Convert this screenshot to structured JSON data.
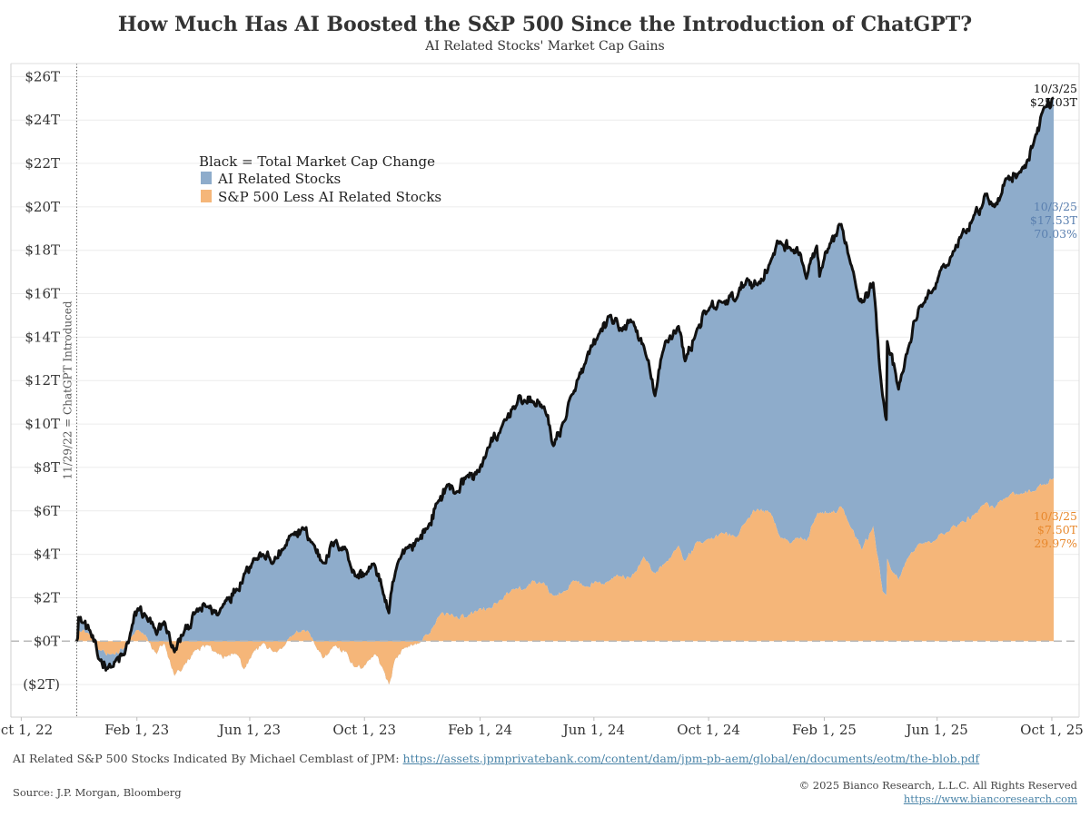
{
  "header": {
    "title": "How Much Has AI Boosted the S&P 500 Since the Introduction of ChatGPT?",
    "subtitle": "AI Related Stocks' Market Cap Gains"
  },
  "footer": {
    "note_prefix": "AI Related S&P 500 Stocks Indicated By Michael Cemblast of JPM: ",
    "note_link": "https://assets.jpmprivatebank.com/content/dam/jpm-pb-aem/global/en/documents/eotm/the-blob.pdf",
    "source": "Source: J.P. Morgan, Bloomberg",
    "copyright": "© 2025 Bianco Research, L.L.C. All Rights Reserved",
    "website": "https://www.biancoresearch.com"
  },
  "chart_data": {
    "type": "area",
    "x_start": "2022-11-29",
    "x_end": "2025-10-03",
    "xlim": [
      "2022-09-20",
      "2025-10-30"
    ],
    "ylim": [
      -3.5,
      26.6
    ],
    "yticks": [
      -2,
      0,
      2,
      4,
      6,
      8,
      10,
      12,
      14,
      16,
      18,
      20,
      22,
      24,
      26
    ],
    "ytick_labels": [
      "($2T)",
      "$0T",
      "$2T",
      "$4T",
      "$6T",
      "$8T",
      "$10T",
      "$12T",
      "$14T",
      "$16T",
      "$18T",
      "$20T",
      "$22T",
      "$24T",
      "$26T"
    ],
    "xticks": [
      "2022-10-01",
      "2023-02-01",
      "2023-06-01",
      "2023-10-01",
      "2024-02-01",
      "2024-06-01",
      "2024-10-01",
      "2025-02-01",
      "2025-06-01",
      "2025-10-01"
    ],
    "xtick_labels": [
      "Oct 1, 22",
      "Feb 1, 23",
      "Jun 1, 23",
      "Oct 1, 23",
      "Feb 1, 24",
      "Jun 1, 24",
      "Oct 1, 24",
      "Feb 1, 25",
      "Jun 1, 25",
      "Oct 1, 25"
    ],
    "grid": true,
    "legend": {
      "placement": "upper-left",
      "header": "Black = Total Market Cap Change",
      "entries": [
        "AI Related Stocks",
        "S&P 500 Less AI Related Stocks"
      ]
    },
    "vline": {
      "date": "2022-11-29",
      "label": "11/29/22 = ChatGPT Introduced"
    },
    "colors": {
      "ai": "#8eaccb",
      "non_ai": "#f5b679",
      "total": "#111111",
      "ai_label": "#5b80b0",
      "non_ai_label": "#e8882c"
    },
    "series": [
      {
        "name": "Total",
        "key": "total",
        "points": [
          [
            "2022-11-29",
            0
          ],
          [
            "2022-12-01",
            1.1
          ],
          [
            "2022-12-13",
            0.5
          ],
          [
            "2022-12-22",
            -0.8
          ],
          [
            "2023-01-05",
            -1.2
          ],
          [
            "2023-01-19",
            -0.6
          ],
          [
            "2023-01-26",
            0.5
          ],
          [
            "2023-02-02",
            1.5
          ],
          [
            "2023-02-10",
            1.2
          ],
          [
            "2023-02-22",
            0.3
          ],
          [
            "2023-03-02",
            0.9
          ],
          [
            "2023-03-13",
            -0.5
          ],
          [
            "2023-03-23",
            0.4
          ],
          [
            "2023-04-04",
            1.3
          ],
          [
            "2023-04-18",
            1.6
          ],
          [
            "2023-04-28",
            1.2
          ],
          [
            "2023-05-08",
            2
          ],
          [
            "2023-05-18",
            2.4
          ],
          [
            "2023-05-26",
            3.1
          ],
          [
            "2023-06-05",
            3.8
          ],
          [
            "2023-06-15",
            4
          ],
          [
            "2023-06-26",
            3.6
          ],
          [
            "2023-07-06",
            4.2
          ],
          [
            "2023-07-18",
            4.9
          ],
          [
            "2023-07-28",
            5.2
          ],
          [
            "2023-08-07",
            4.5
          ],
          [
            "2023-08-18",
            3.6
          ],
          [
            "2023-08-31",
            4.6
          ],
          [
            "2023-09-12",
            4.2
          ],
          [
            "2023-09-21",
            3
          ],
          [
            "2023-10-02",
            3.1
          ],
          [
            "2023-10-12",
            3.5
          ],
          [
            "2023-10-20",
            2.4
          ],
          [
            "2023-10-27",
            1.3
          ],
          [
            "2023-11-03",
            3.2
          ],
          [
            "2023-11-14",
            4.3
          ],
          [
            "2023-11-28",
            4.7
          ],
          [
            "2023-12-08",
            5.3
          ],
          [
            "2023-12-18",
            6.4
          ],
          [
            "2023-12-28",
            7.2
          ],
          [
            "2024-01-05",
            6.8
          ],
          [
            "2024-01-18",
            7.6
          ],
          [
            "2024-01-31",
            7.8
          ],
          [
            "2024-02-09",
            8.9
          ],
          [
            "2024-02-22",
            9.6
          ],
          [
            "2024-03-07",
            10.8
          ],
          [
            "2024-03-19",
            11.1
          ],
          [
            "2024-03-28",
            11
          ],
          [
            "2024-04-09",
            10.8
          ],
          [
            "2024-04-19",
            9
          ],
          [
            "2024-04-30",
            10.1
          ],
          [
            "2024-05-10",
            11.4
          ],
          [
            "2024-05-23",
            12.8
          ],
          [
            "2024-06-05",
            14
          ],
          [
            "2024-06-18",
            15
          ],
          [
            "2024-06-28",
            14.3
          ],
          [
            "2024-07-10",
            14.8
          ],
          [
            "2024-07-24",
            13.6
          ],
          [
            "2024-08-05",
            11.3
          ],
          [
            "2024-08-16",
            13.8
          ],
          [
            "2024-08-30",
            14.5
          ],
          [
            "2024-09-06",
            12.9
          ],
          [
            "2024-09-19",
            14.4
          ],
          [
            "2024-09-30",
            15.2
          ],
          [
            "2024-10-15",
            15.6
          ],
          [
            "2024-10-31",
            15.8
          ],
          [
            "2024-11-11",
            16.7
          ],
          [
            "2024-11-22",
            16.4
          ],
          [
            "2024-12-06",
            17.5
          ],
          [
            "2024-12-16",
            18.4
          ],
          [
            "2024-12-27",
            18.1
          ],
          [
            "2025-01-07",
            17.8
          ],
          [
            "2025-01-13",
            16.7
          ],
          [
            "2025-01-24",
            18.2
          ],
          [
            "2025-01-27",
            16.8
          ],
          [
            "2025-02-06",
            18.1
          ],
          [
            "2025-02-19",
            19.2
          ],
          [
            "2025-03-04",
            17
          ],
          [
            "2025-03-13",
            15.6
          ],
          [
            "2025-03-25",
            16.5
          ],
          [
            "2025-04-04",
            11.3
          ],
          [
            "2025-04-08",
            10.2
          ],
          [
            "2025-04-09",
            13.8
          ],
          [
            "2025-04-21",
            11.6
          ],
          [
            "2025-05-02",
            13.6
          ],
          [
            "2025-05-13",
            15.4
          ],
          [
            "2025-05-28",
            16.2
          ],
          [
            "2025-06-11",
            17.3
          ],
          [
            "2025-06-27",
            18.7
          ],
          [
            "2025-07-10",
            19.6
          ],
          [
            "2025-07-24",
            20.6
          ],
          [
            "2025-08-01",
            20
          ],
          [
            "2025-08-13",
            21.3
          ],
          [
            "2025-08-29",
            21.6
          ],
          [
            "2025-09-12",
            23
          ],
          [
            "2025-09-22",
            24.5
          ],
          [
            "2025-10-03",
            25.03
          ]
        ]
      },
      {
        "name": "S&P 500 Less AI Related Stocks",
        "key": "non_ai",
        "points": [
          [
            "2022-11-29",
            0
          ],
          [
            "2022-12-01",
            0.5
          ],
          [
            "2022-12-13",
            0.3
          ],
          [
            "2022-12-22",
            -0.4
          ],
          [
            "2023-01-05",
            -0.6
          ],
          [
            "2023-01-19",
            -0.3
          ],
          [
            "2023-01-26",
            0.2
          ],
          [
            "2023-02-02",
            0.5
          ],
          [
            "2023-02-10",
            0.3
          ],
          [
            "2023-02-22",
            -0.6
          ],
          [
            "2023-03-02",
            -0.1
          ],
          [
            "2023-03-13",
            -1.6
          ],
          [
            "2023-03-23",
            -1.1
          ],
          [
            "2023-04-04",
            -0.4
          ],
          [
            "2023-04-18",
            -0.2
          ],
          [
            "2023-04-28",
            -0.6
          ],
          [
            "2023-05-08",
            -0.7
          ],
          [
            "2023-05-18",
            -0.6
          ],
          [
            "2023-05-26",
            -1.3
          ],
          [
            "2023-06-05",
            -0.5
          ],
          [
            "2023-06-15",
            -0.1
          ],
          [
            "2023-06-26",
            -0.5
          ],
          [
            "2023-07-06",
            -0.3
          ],
          [
            "2023-07-18",
            0.3
          ],
          [
            "2023-07-28",
            0.5
          ],
          [
            "2023-08-07",
            0.1
          ],
          [
            "2023-08-18",
            -0.8
          ],
          [
            "2023-08-31",
            -0.2
          ],
          [
            "2023-09-12",
            -0.5
          ],
          [
            "2023-09-21",
            -1.2
          ],
          [
            "2023-10-02",
            -1.1
          ],
          [
            "2023-10-12",
            -0.6
          ],
          [
            "2023-10-20",
            -1.2
          ],
          [
            "2023-10-27",
            -2
          ],
          [
            "2023-11-03",
            -0.8
          ],
          [
            "2023-11-14",
            -0.3
          ],
          [
            "2023-11-28",
            -0.1
          ],
          [
            "2023-12-08",
            0.3
          ],
          [
            "2023-12-18",
            1.1
          ],
          [
            "2023-12-28",
            1.3
          ],
          [
            "2024-01-05",
            1.1
          ],
          [
            "2024-01-18",
            1.1
          ],
          [
            "2024-01-31",
            1.5
          ],
          [
            "2024-02-09",
            1.5
          ],
          [
            "2024-02-22",
            1.9
          ],
          [
            "2024-03-07",
            2.4
          ],
          [
            "2024-03-19",
            2.4
          ],
          [
            "2024-03-28",
            2.8
          ],
          [
            "2024-04-09",
            2.7
          ],
          [
            "2024-04-19",
            2.1
          ],
          [
            "2024-04-30",
            2.3
          ],
          [
            "2024-05-10",
            2.8
          ],
          [
            "2024-05-23",
            2.5
          ],
          [
            "2024-06-05",
            2.7
          ],
          [
            "2024-06-18",
            2.8
          ],
          [
            "2024-06-28",
            3
          ],
          [
            "2024-07-10",
            2.9
          ],
          [
            "2024-07-24",
            3.9
          ],
          [
            "2024-08-05",
            3.1
          ],
          [
            "2024-08-16",
            3.6
          ],
          [
            "2024-08-30",
            4.4
          ],
          [
            "2024-09-06",
            3.7
          ],
          [
            "2024-09-19",
            4.6
          ],
          [
            "2024-09-30",
            4.7
          ],
          [
            "2024-10-15",
            5
          ],
          [
            "2024-10-31",
            4.8
          ],
          [
            "2024-11-11",
            5.6
          ],
          [
            "2024-11-22",
            6.1
          ],
          [
            "2024-12-06",
            5.9
          ],
          [
            "2024-12-16",
            4.8
          ],
          [
            "2024-12-27",
            4.5
          ],
          [
            "2025-01-07",
            4.8
          ],
          [
            "2025-01-13",
            4.6
          ],
          [
            "2025-01-24",
            5.8
          ],
          [
            "2025-01-27",
            5.9
          ],
          [
            "2025-02-06",
            5.9
          ],
          [
            "2025-02-19",
            6.2
          ],
          [
            "2025-03-04",
            5.1
          ],
          [
            "2025-03-13",
            4.2
          ],
          [
            "2025-03-25",
            5.3
          ],
          [
            "2025-04-04",
            2.3
          ],
          [
            "2025-04-08",
            2.1
          ],
          [
            "2025-04-09",
            3.8
          ],
          [
            "2025-04-21",
            2.8
          ],
          [
            "2025-05-02",
            3.9
          ],
          [
            "2025-05-13",
            4.5
          ],
          [
            "2025-05-28",
            4.6
          ],
          [
            "2025-06-11",
            5
          ],
          [
            "2025-06-27",
            5.5
          ],
          [
            "2025-07-10",
            5.8
          ],
          [
            "2025-07-24",
            6.4
          ],
          [
            "2025-08-01",
            6.1
          ],
          [
            "2025-08-13",
            6.6
          ],
          [
            "2025-08-29",
            6.8
          ],
          [
            "2025-09-12",
            6.9
          ],
          [
            "2025-09-22",
            7.2
          ],
          [
            "2025-10-03",
            7.5
          ]
        ]
      }
    ],
    "end_labels": {
      "total": {
        "date": "10/3/25",
        "value": "$25.03T"
      },
      "ai": {
        "date": "10/3/25",
        "value": "$17.53T",
        "pct": "70.03%"
      },
      "non_ai": {
        "date": "10/3/25",
        "value": "$7.50T",
        "pct": "29.97%"
      }
    }
  }
}
